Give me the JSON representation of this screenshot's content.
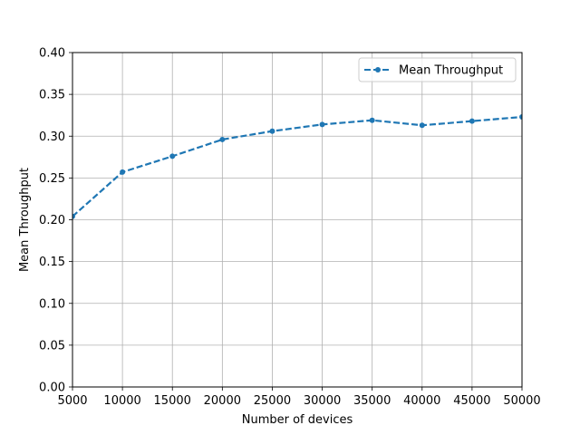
{
  "chart_data": {
    "type": "line",
    "title": "",
    "xlabel": "Number of devices",
    "ylabel": "Mean Throughput",
    "xlim": [
      5000,
      50000
    ],
    "ylim": [
      0.0,
      0.4
    ],
    "xticks": [
      5000,
      10000,
      15000,
      20000,
      25000,
      30000,
      35000,
      40000,
      45000,
      50000
    ],
    "yticks": [
      0.0,
      0.05,
      0.1,
      0.15,
      0.2,
      0.25,
      0.3,
      0.35,
      0.4
    ],
    "xtick_labels": [
      "5000",
      "10000",
      "15000",
      "20000",
      "25000",
      "30000",
      "35000",
      "40000",
      "45000",
      "50000"
    ],
    "ytick_labels": [
      "0.00",
      "0.05",
      "0.10",
      "0.15",
      "0.20",
      "0.25",
      "0.30",
      "0.35",
      "0.40"
    ],
    "grid": true,
    "legend_position": "top-right",
    "series": [
      {
        "name": "Mean Throughput",
        "color": "#1f77b4",
        "line_style": "dashed",
        "marker": "dot",
        "x": [
          5000,
          10000,
          15000,
          20000,
          25000,
          30000,
          35000,
          40000,
          45000,
          50000
        ],
        "y": [
          0.204,
          0.257,
          0.276,
          0.296,
          0.306,
          0.314,
          0.319,
          0.313,
          0.318,
          0.323
        ]
      }
    ]
  }
}
